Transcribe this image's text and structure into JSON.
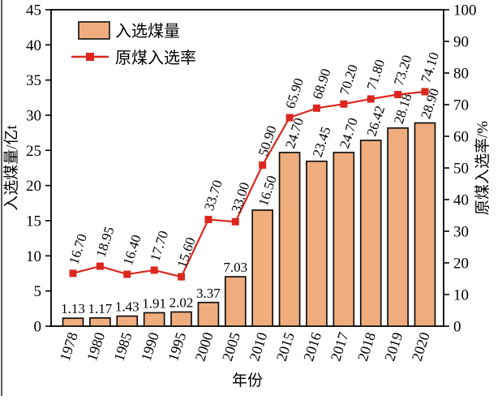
{
  "figure_title": "",
  "chart_data": {
    "type": "bar+line",
    "categories": [
      "1978",
      "1980",
      "1985",
      "1990",
      "1995",
      "2000",
      "2005",
      "2010",
      "2015",
      "2016",
      "2017",
      "2018",
      "2019",
      "2020"
    ],
    "series": [
      {
        "name": "入选煤量",
        "type": "bar",
        "axis": "left",
        "color": "#EFAD7E",
        "stroke": "#111111",
        "values": [
          1.13,
          1.17,
          1.43,
          1.91,
          2.02,
          3.37,
          7.03,
          16.5,
          24.7,
          23.45,
          24.7,
          26.42,
          28.18,
          28.9
        ],
        "labels": [
          "1.13",
          "1.17",
          "1.43",
          "1.91",
          "2.02",
          "3.37",
          "7.03",
          "16.50",
          "24.70",
          "23.45",
          "24.70",
          "26.42",
          "28.18",
          "28.90"
        ]
      },
      {
        "name": "原煤入选率",
        "type": "line",
        "axis": "right",
        "color": "#DC271E",
        "values": [
          16.7,
          18.95,
          16.4,
          17.7,
          15.6,
          33.7,
          33.0,
          50.9,
          65.9,
          68.9,
          70.2,
          71.8,
          73.2,
          74.1
        ],
        "labels": [
          "16.70",
          "18.95",
          "16.40",
          "17.70",
          "15.60",
          "33.70",
          "33.00",
          "50.90",
          "65.90",
          "68.90",
          "70.20",
          "71.80",
          "73.20",
          "74.10"
        ]
      }
    ],
    "xlabel": "年份",
    "left_axis": {
      "label": "入选煤量/亿t",
      "min": 0,
      "max": 45,
      "step": 5
    },
    "right_axis": {
      "label": "原煤入选率/%",
      "min": 0,
      "max": 100,
      "step": 10
    },
    "legend_position": "top-left",
    "grid": false
  }
}
